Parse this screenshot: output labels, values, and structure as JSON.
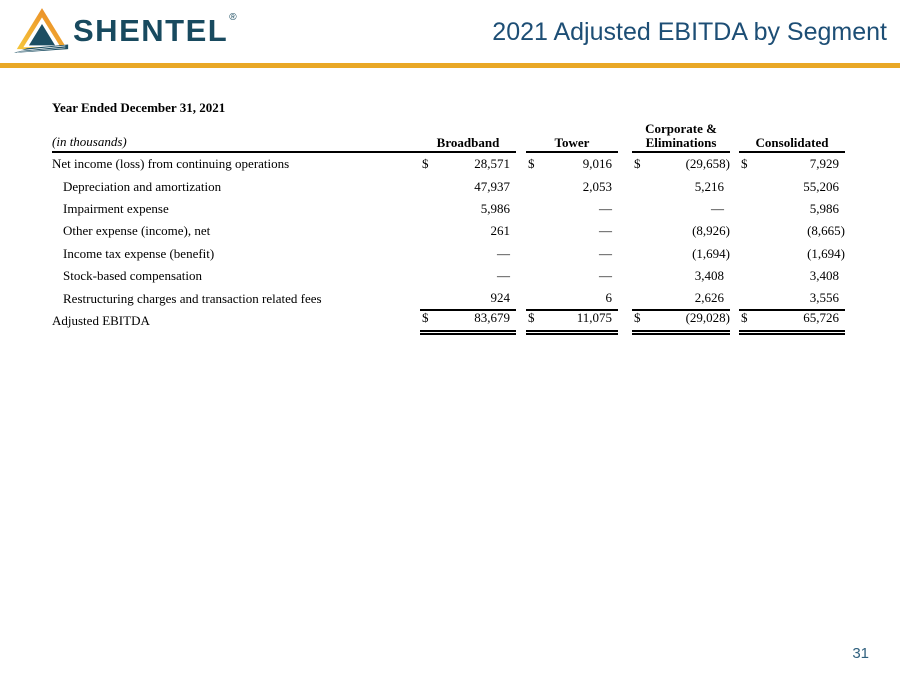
{
  "header": {
    "logo_text": "SHENTEL",
    "logo_reg": "®",
    "title": "2021 Adjusted EBITDA by Segment"
  },
  "table": {
    "caption": "Year Ended December 31, 2021",
    "units_label": "(in thousands)",
    "currency_symbol": "$",
    "columns": [
      "Broadband",
      "Tower",
      "Corporate & Eliminations",
      "Consolidated"
    ],
    "rows": [
      {
        "label": "Net income (loss) from continuing operations",
        "indent": false,
        "dollar": true,
        "underline": "none",
        "values": [
          "28,571",
          "9,016",
          "(29,658)",
          "7,929"
        ]
      },
      {
        "label": "Depreciation and amortization",
        "indent": true,
        "dollar": false,
        "underline": "none",
        "values": [
          "47,937",
          "2,053",
          "5,216",
          "55,206"
        ]
      },
      {
        "label": "Impairment expense",
        "indent": true,
        "dollar": false,
        "underline": "none",
        "values": [
          "5,986",
          "—",
          "—",
          "5,986"
        ]
      },
      {
        "label": "Other expense (income), net",
        "indent": true,
        "dollar": false,
        "underline": "none",
        "values": [
          "261",
          "—",
          "(8,926)",
          "(8,665)"
        ]
      },
      {
        "label": "Income tax expense (benefit)",
        "indent": true,
        "dollar": false,
        "underline": "none",
        "values": [
          "—",
          "—",
          "(1,694)",
          "(1,694)"
        ]
      },
      {
        "label": "Stock-based compensation",
        "indent": true,
        "dollar": false,
        "underline": "none",
        "values": [
          "—",
          "—",
          "3,408",
          "3,408"
        ]
      },
      {
        "label": "Restructuring charges and transaction related fees",
        "indent": true,
        "dollar": false,
        "underline": "single",
        "values": [
          "924",
          "6",
          "2,626",
          "3,556"
        ]
      },
      {
        "label": "Adjusted EBITDA",
        "indent": false,
        "dollar": true,
        "underline": "double",
        "values": [
          "83,679",
          "11,075",
          "(29,028)",
          "65,726"
        ]
      }
    ]
  },
  "page": {
    "number": "31"
  },
  "colors": {
    "accent_gold": "#E9A826",
    "brand_navy": "#184A5F",
    "title_blue": "#1D4E75",
    "page_number_blue": "#2F607E",
    "triangle_gradient_start": "#F5C63C",
    "triangle_gradient_end": "#E67E22"
  }
}
